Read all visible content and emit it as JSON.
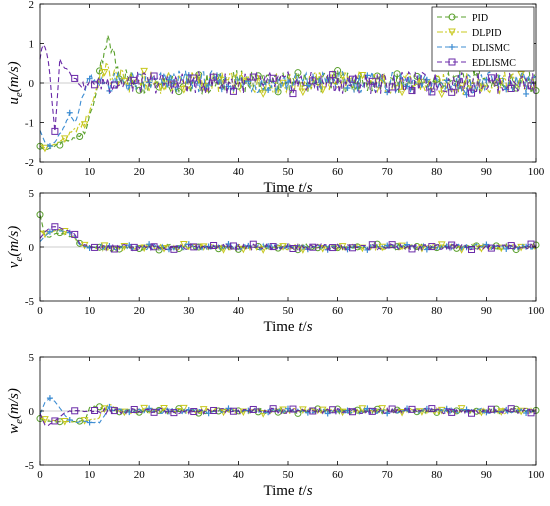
{
  "chart_data": [
    {
      "type": "line",
      "ylabel": "u_e(m/s)",
      "xlabel": "Time t/s",
      "xlim": [
        0,
        100
      ],
      "ylim": [
        -2,
        2
      ],
      "xticks": [
        0,
        10,
        20,
        30,
        40,
        50,
        60,
        70,
        80,
        90,
        100
      ],
      "yticks": [
        -2,
        -1,
        0,
        1,
        2
      ],
      "grid": false,
      "legend": "top-right",
      "series": [
        {
          "name": "PID",
          "color": "#5aa02c",
          "marker": "circle",
          "dash": "dashed",
          "x": [
            0,
            1,
            3,
            5,
            7,
            9,
            10,
            11,
            12,
            13,
            14,
            15,
            16,
            18,
            20,
            25,
            30,
            40,
            50,
            60,
            70,
            80,
            90,
            100
          ],
          "y": [
            -1.6,
            -1.7,
            -1.6,
            -1.5,
            -1.4,
            -1.2,
            -0.9,
            -0.4,
            0.2,
            0.7,
            1.1,
            0.6,
            0.3,
            0.1,
            0.0,
            0.1,
            -0.05,
            0.05,
            0.0,
            0.05,
            -0.05,
            0.0,
            0.05,
            0.0
          ]
        },
        {
          "name": "DLPID",
          "color": "#c8c81e",
          "marker": "triangle-down",
          "dash": "dashdot",
          "x": [
            0,
            1,
            3,
            5,
            7,
            9,
            10,
            11,
            12,
            13,
            14,
            16,
            18,
            20,
            25,
            30,
            40,
            50,
            60,
            70,
            80,
            90,
            100
          ],
          "y": [
            -1.55,
            -1.65,
            -1.55,
            -1.4,
            -1.2,
            -1.0,
            -0.7,
            -0.3,
            0.1,
            0.4,
            0.2,
            0.1,
            0.0,
            0.05,
            0.0,
            0.05,
            0.0,
            0.0,
            0.05,
            0.0,
            -0.05,
            0.0,
            0.0
          ]
        },
        {
          "name": "DLISMC",
          "color": "#3c8cd2",
          "marker": "plus",
          "dash": "dashed",
          "x": [
            0,
            1,
            2,
            3,
            4,
            5,
            6,
            7,
            8,
            9,
            10,
            11,
            12,
            13,
            15,
            20,
            30,
            40,
            50,
            60,
            70,
            80,
            90,
            100
          ],
          "y": [
            -1.2,
            -1.5,
            -1.6,
            -1.5,
            -1.3,
            -1.1,
            -0.8,
            -1.0,
            -0.6,
            -0.2,
            0.2,
            0.1,
            -0.1,
            0.05,
            0.0,
            0.0,
            0.05,
            0.0,
            0.0,
            0.05,
            0.0,
            -0.05,
            0.0,
            0.0
          ]
        },
        {
          "name": "EDLISMC",
          "color": "#6a2aa8",
          "marker": "square",
          "dash": "dashed",
          "x": [
            0,
            0.5,
            1,
            1.5,
            2,
            2.5,
            3,
            3.5,
            4,
            5,
            6,
            7,
            8,
            9,
            10,
            12,
            15,
            20,
            30,
            40,
            50,
            60,
            70,
            80,
            90,
            100
          ],
          "y": [
            0.6,
            1.0,
            0.9,
            0.7,
            0.2,
            -0.6,
            -1.2,
            -0.4,
            0.6,
            0.4,
            0.3,
            0.1,
            0.0,
            -0.1,
            0.0,
            0.05,
            0.0,
            0.0,
            0.0,
            0.0,
            0.0,
            0.0,
            0.0,
            0.0,
            0.0,
            0.0
          ]
        }
      ]
    },
    {
      "type": "line",
      "ylabel": "v_e(m/s)",
      "xlabel": "Time t/s",
      "xlim": [
        0,
        100
      ],
      "ylim": [
        -5,
        5
      ],
      "xticks": [
        0,
        10,
        20,
        30,
        40,
        50,
        60,
        70,
        80,
        90,
        100
      ],
      "yticks": [
        -5,
        0,
        5
      ],
      "grid": false,
      "series": [
        {
          "name": "PID",
          "color": "#5aa02c",
          "marker": "circle",
          "dash": "dashed",
          "x": [
            0,
            0.5,
            1,
            2,
            3,
            4,
            5,
            6,
            7,
            8,
            10,
            15,
            20,
            30,
            40,
            50,
            60,
            70,
            80,
            90,
            100
          ],
          "y": [
            3.0,
            2.0,
            1.0,
            0.9,
            1.2,
            1.3,
            1.2,
            1.0,
            0.8,
            0.3,
            0.0,
            -0.2,
            0.0,
            0.0,
            0.0,
            0.0,
            0.0,
            0.0,
            0.0,
            0.0,
            0.0
          ]
        },
        {
          "name": "DLPID",
          "color": "#c8c81e",
          "marker": "triangle-down",
          "dash": "dashdot",
          "x": [
            0,
            1,
            2,
            3,
            4,
            5,
            6,
            7,
            8,
            10,
            15,
            20,
            30,
            40,
            50,
            60,
            70,
            80,
            90,
            100
          ],
          "y": [
            1.5,
            1.2,
            1.3,
            1.5,
            1.6,
            1.4,
            1.2,
            0.8,
            0.2,
            0.0,
            -0.2,
            0.0,
            0.0,
            0.0,
            0.0,
            0.0,
            0.0,
            0.0,
            0.0,
            0.0
          ]
        },
        {
          "name": "DLISMC",
          "color": "#3c8cd2",
          "marker": "plus",
          "dash": "dashed",
          "x": [
            0,
            1,
            2,
            3,
            4,
            5,
            6,
            7,
            8,
            10,
            15,
            20,
            30,
            40,
            50,
            60,
            70,
            80,
            90,
            100
          ],
          "y": [
            0.5,
            1.0,
            1.4,
            1.6,
            1.5,
            1.4,
            1.3,
            1.0,
            0.2,
            0.0,
            0.0,
            0.0,
            0.0,
            0.0,
            0.0,
            0.0,
            0.0,
            0.0,
            0.0,
            0.0
          ]
        },
        {
          "name": "EDLISMC",
          "color": "#6a2aa8",
          "marker": "square",
          "dash": "dashed",
          "x": [
            0,
            1,
            2,
            3,
            4,
            5,
            6,
            7,
            8,
            10,
            15,
            20,
            30,
            40,
            50,
            60,
            70,
            80,
            90,
            100
          ],
          "y": [
            0.8,
            1.4,
            1.8,
            1.9,
            1.8,
            1.6,
            1.4,
            1.2,
            0.3,
            0.0,
            0.0,
            0.0,
            0.0,
            0.0,
            0.0,
            0.0,
            0.0,
            0.0,
            0.0,
            0.0
          ]
        }
      ]
    },
    {
      "type": "line",
      "ylabel": "w_e(m/s)",
      "xlabel": "Time t/s",
      "xlim": [
        0,
        100
      ],
      "ylim": [
        -5,
        5
      ],
      "xticks": [
        0,
        10,
        20,
        30,
        40,
        50,
        60,
        70,
        80,
        90,
        100
      ],
      "yticks": [
        -5,
        0,
        5
      ],
      "grid": false,
      "series": [
        {
          "name": "PID",
          "color": "#5aa02c",
          "marker": "circle",
          "dash": "dashed",
          "x": [
            0,
            1,
            3,
            5,
            7,
            9,
            10,
            11,
            12,
            13,
            14,
            16,
            20,
            30,
            40,
            50,
            60,
            70,
            80,
            90,
            100
          ],
          "y": [
            -0.7,
            -0.9,
            -1.0,
            -1.0,
            -1.0,
            -0.9,
            0.3,
            0.4,
            0.3,
            0.2,
            0.1,
            0.0,
            0.0,
            0.0,
            0.0,
            0.0,
            0.0,
            0.0,
            0.0,
            0.0,
            0.0
          ]
        },
        {
          "name": "DLPID",
          "color": "#c8c81e",
          "marker": "triangle-down",
          "dash": "dashdot",
          "x": [
            0,
            1,
            3,
            5,
            7,
            9,
            11,
            12,
            13,
            14,
            15,
            16,
            20,
            30,
            40,
            50,
            60,
            70,
            80,
            90,
            100
          ],
          "y": [
            -0.6,
            -0.8,
            -0.9,
            -1.0,
            -1.0,
            -0.9,
            -0.8,
            -0.6,
            0.3,
            0.4,
            0.2,
            0.0,
            0.0,
            0.0,
            0.0,
            0.0,
            0.0,
            0.0,
            0.0,
            0.0,
            0.0
          ]
        },
        {
          "name": "DLISMC",
          "color": "#3c8cd2",
          "marker": "plus",
          "dash": "dashed",
          "x": [
            0,
            1,
            2,
            3,
            4,
            5,
            6,
            7,
            8,
            10,
            12,
            13,
            14,
            16,
            20,
            30,
            40,
            50,
            60,
            70,
            80,
            90,
            100
          ],
          "y": [
            -0.3,
            0.8,
            1.2,
            0.9,
            0.3,
            -0.4,
            -0.8,
            -1.0,
            -1.0,
            -1.0,
            -1.1,
            -0.3,
            0.2,
            0.0,
            0.0,
            0.0,
            0.0,
            0.0,
            0.0,
            0.0,
            0.0,
            0.0,
            0.0
          ]
        },
        {
          "name": "EDLISMC",
          "color": "#6a2aa8",
          "marker": "square",
          "dash": "dashed",
          "x": [
            0,
            0.5,
            1,
            1.5,
            2,
            3,
            4,
            5,
            6,
            8,
            10,
            15,
            20,
            30,
            40,
            50,
            60,
            70,
            80,
            90,
            100
          ],
          "y": [
            -0.2,
            -0.8,
            -1.3,
            -1.4,
            -1.2,
            -0.9,
            -0.5,
            -0.2,
            0.0,
            0.0,
            0.0,
            0.0,
            0.0,
            0.0,
            0.0,
            0.0,
            0.0,
            0.0,
            0.0,
            0.0,
            0.0
          ]
        }
      ]
    }
  ]
}
